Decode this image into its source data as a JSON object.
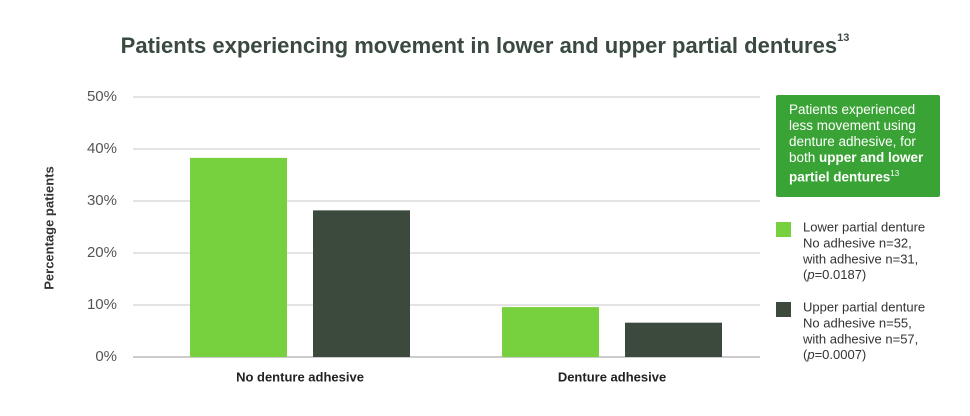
{
  "chart_data": {
    "type": "bar",
    "title": "Patients experiencing movement in lower and upper partial dentures",
    "title_sup": "13",
    "y_label": "Percentage patients",
    "categories": [
      "No denture adhesive",
      "Denture adhesive"
    ],
    "series": [
      {
        "name": "Lower partial denture",
        "color": "#77d13f",
        "values": [
          38.3,
          9.6
        ],
        "notes": [
          "No adhesive n=32,",
          "with adhesive n=31,",
          "(p=0.0187)"
        ]
      },
      {
        "name": "Upper partial denture",
        "color": "#3c4a3e",
        "values": [
          28.2,
          6.6
        ],
        "notes": [
          "No adhesive n=55,",
          "with adhesive n=57,",
          "(p=0.0007)"
        ]
      }
    ],
    "ylim": [
      0,
      50
    ],
    "yticks": [
      {
        "value": 0,
        "label": "0%"
      },
      {
        "value": 10,
        "label": "10%"
      },
      {
        "value": 20,
        "label": "20%"
      },
      {
        "value": 30,
        "label": "30%"
      },
      {
        "value": 40,
        "label": "40%"
      },
      {
        "value": 50,
        "label": "50%"
      }
    ],
    "grid": true,
    "annotation": {
      "text": "Patients experienced less movement using denture adhesive, for both",
      "bold": "upper and lower partiel dentures",
      "sup": "13",
      "color": "#3aa335"
    }
  }
}
